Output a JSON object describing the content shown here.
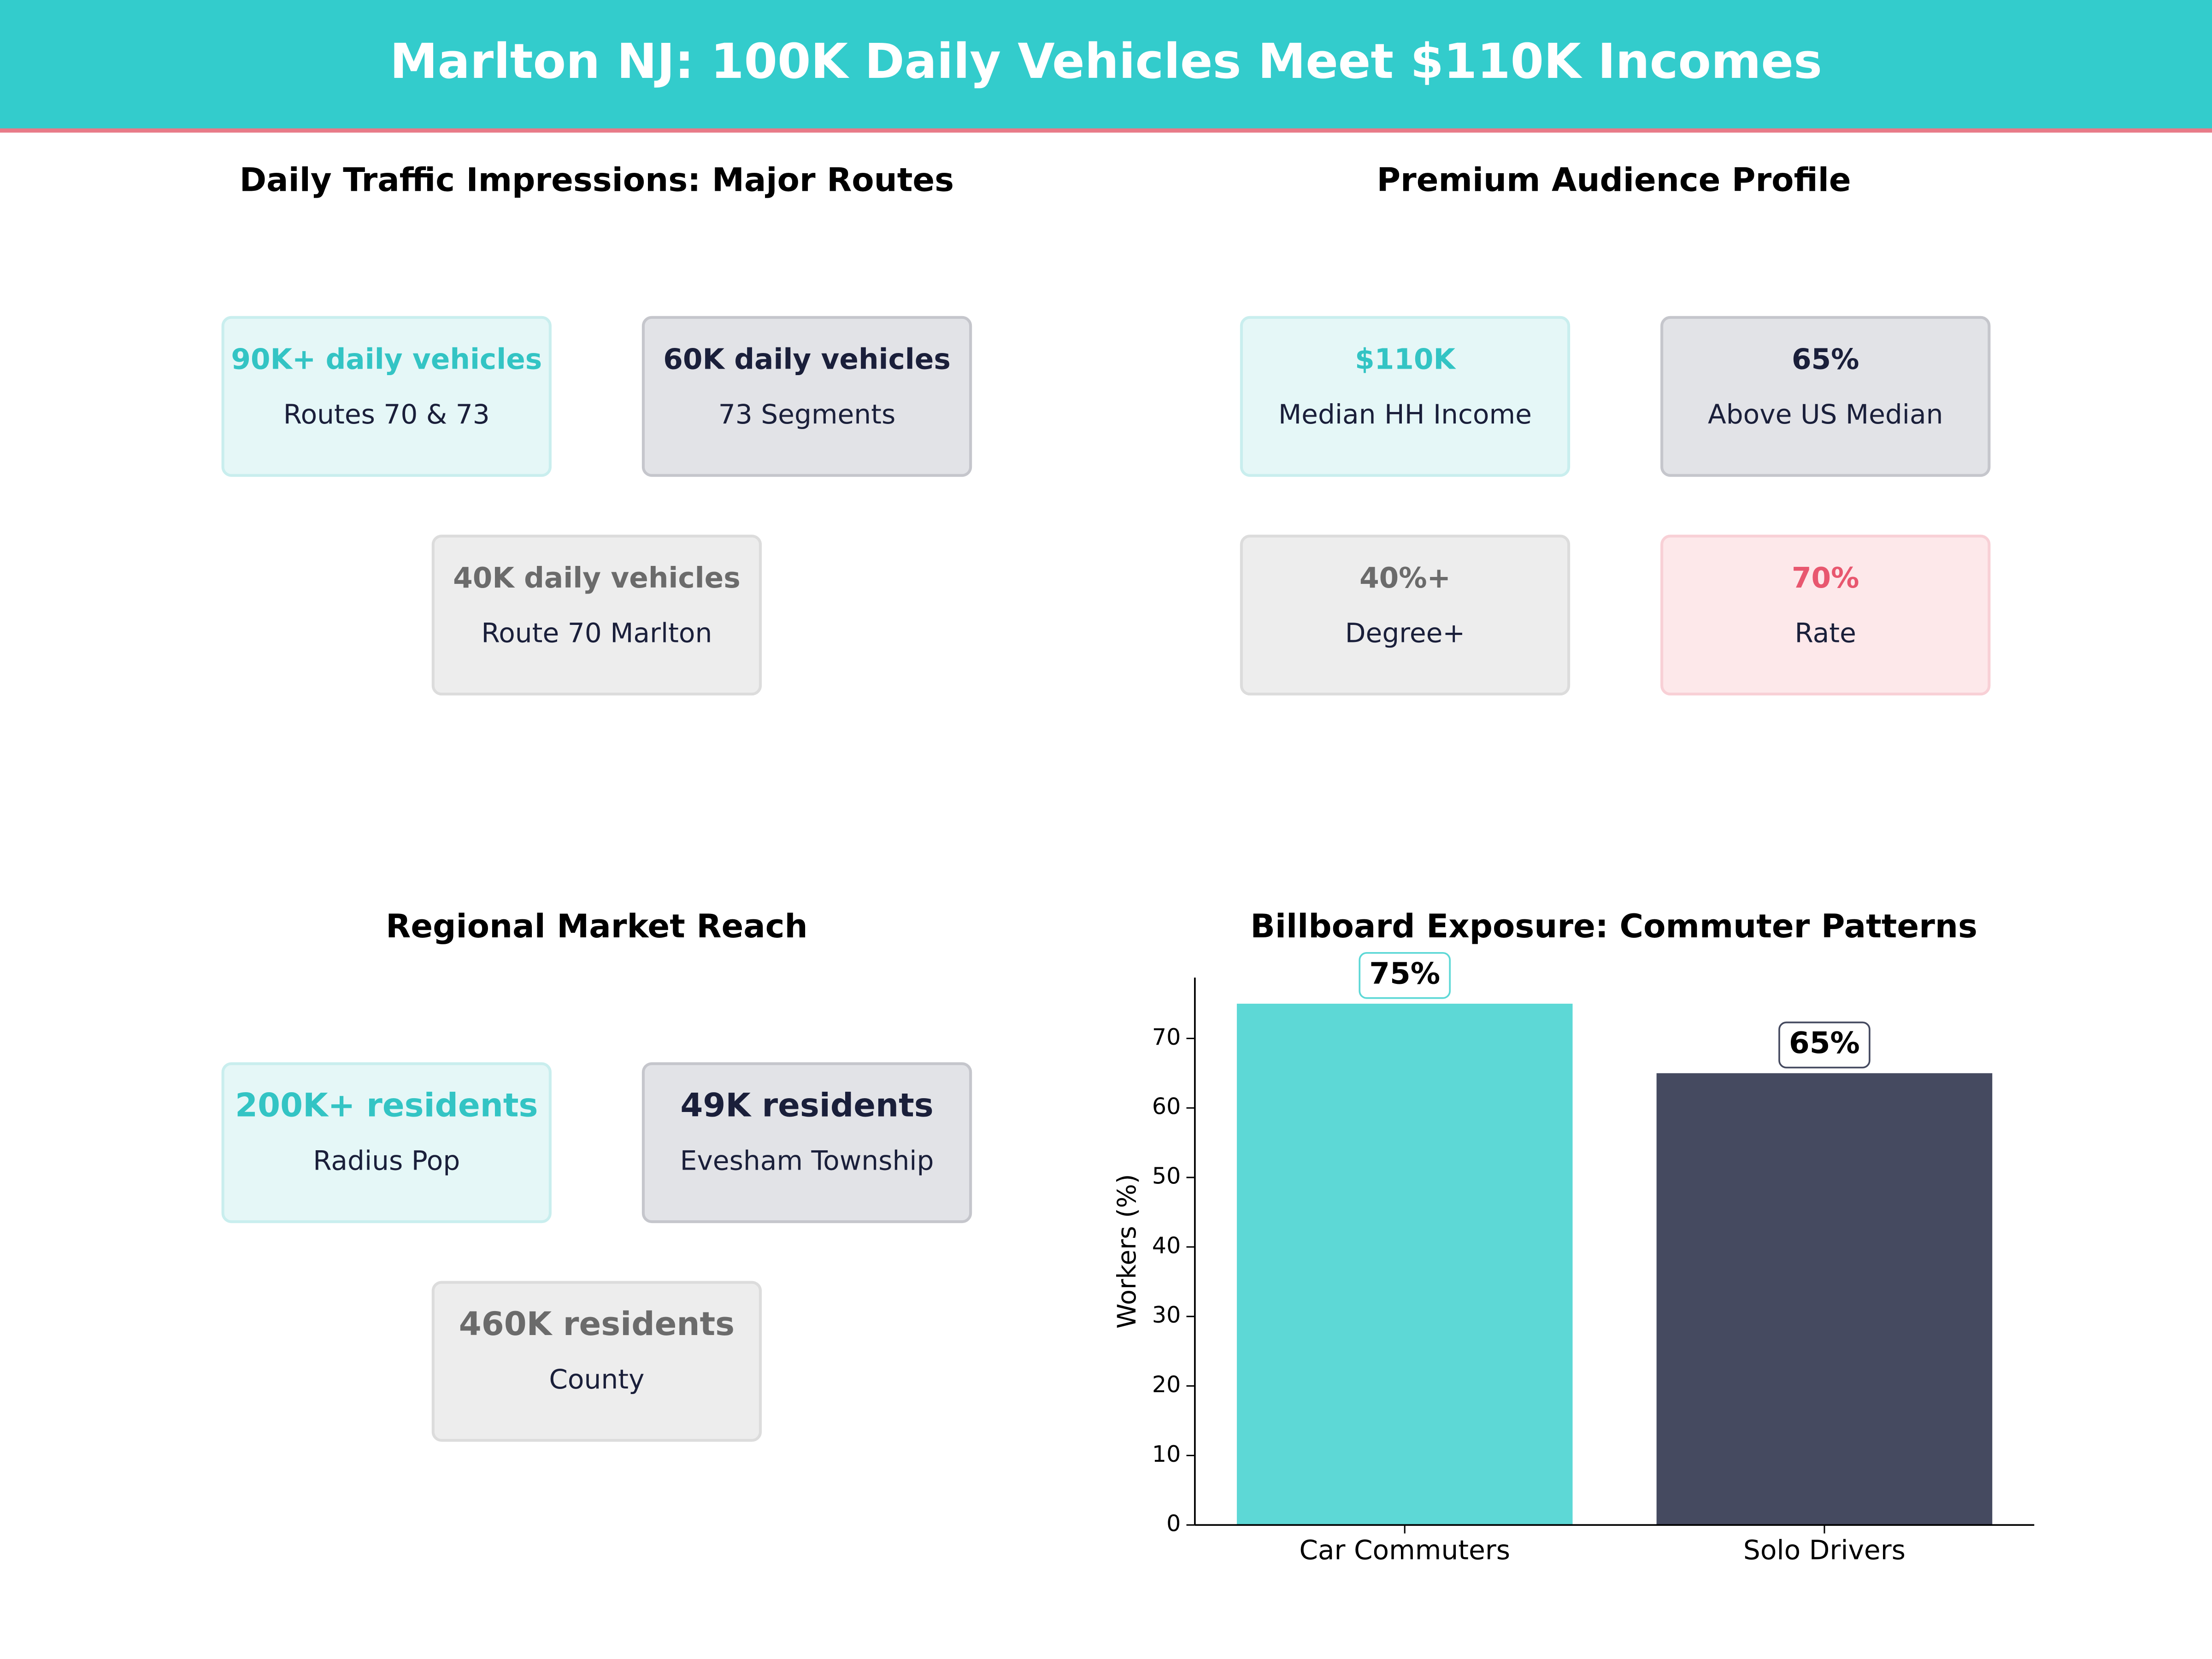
{
  "title": "Marlton NJ: 100K Daily Vehicles Meet $110K Incomes",
  "panels": [
    {
      "title": "Daily Traffic Impressions: Major Routes",
      "cards": [
        {
          "value": "90K+ daily vehicles",
          "label": "Routes 70 & 73",
          "color": "#33c4c4"
        },
        {
          "value": "60K daily vehicles",
          "label": "73 Segments",
          "color": "#1a1f3a"
        },
        {
          "value": "40K daily vehicles",
          "label": "Route 70 Marlton",
          "color": "#6b6b6b"
        }
      ]
    },
    {
      "title": "Premium Audience Profile",
      "cards": [
        {
          "value": "$110K",
          "label": "Median HH Income",
          "color": "#33c4c4"
        },
        {
          "value": "65%",
          "label": "Above US Median",
          "color": "#1a1f3a"
        },
        {
          "value": "40%+",
          "label": "Degree+",
          "color": "#6b6b6b"
        },
        {
          "value": "70%",
          "label": "Rate",
          "color": "#e8576f"
        }
      ]
    },
    {
      "title": "Regional Market Reach",
      "cards": [
        {
          "value": "200K+ residents",
          "label": "Radius Pop",
          "color": "#33c4c4"
        },
        {
          "value": "49K residents",
          "label": "Evesham Township",
          "color": "#1a1f3a"
        },
        {
          "value": "460K residents",
          "label": "County",
          "color": "#6b6b6b"
        }
      ]
    }
  ],
  "chart_data": {
    "type": "bar",
    "title": "Billboard Exposure: Commuter Patterns",
    "categories": [
      "Car Commuters",
      "Solo Drivers"
    ],
    "values": [
      75,
      65
    ],
    "value_labels": [
      "75%",
      "65%"
    ],
    "colors": [
      "#5dd8d6",
      "#454a60"
    ],
    "y_label": "Workers (%)",
    "ylim": [
      0,
      78.75
    ],
    "yticks": [
      0,
      10,
      20,
      30,
      40,
      50,
      60,
      70
    ]
  }
}
